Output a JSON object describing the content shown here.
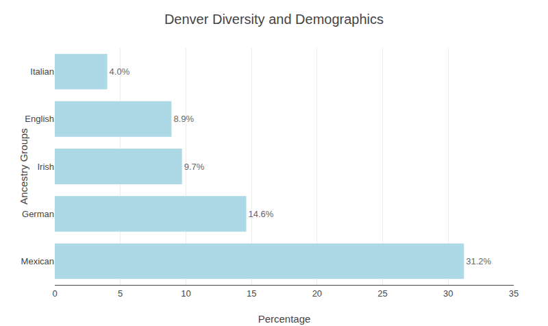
{
  "chart_data": {
    "type": "bar",
    "orientation": "horizontal",
    "title": "Denver Diversity and Demographics",
    "xlabel": "Percentage",
    "ylabel": "Ancestry Groups",
    "categories": [
      "Mexican",
      "German",
      "Irish",
      "English",
      "Italian"
    ],
    "values": [
      31.2,
      14.6,
      9.7,
      8.9,
      4.0
    ],
    "value_labels": [
      "31.2%",
      "14.6%",
      "9.7%",
      "8.9%",
      "4.0%"
    ],
    "data_labels": true,
    "color": "#add8e6",
    "xlim": [
      0,
      35
    ],
    "xticks": [
      0,
      5,
      10,
      15,
      20,
      25,
      30,
      35
    ],
    "grid": true
  }
}
